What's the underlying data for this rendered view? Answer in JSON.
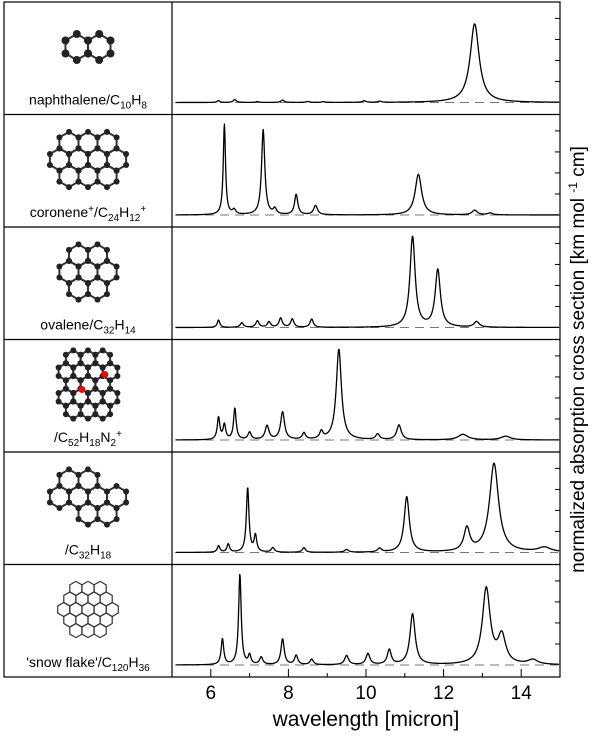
{
  "chart_data": {
    "type": "line",
    "xlabel": "wavelength [micron]",
    "ylabel": "normalized absorption cross section [km mol-1 cm]",
    "xlim": [
      5,
      15
    ],
    "x_ticks": [
      6,
      8,
      10,
      12,
      14
    ],
    "grid": false,
    "legend": "none",
    "panels": [
      {
        "label": {
          "pre": "naphthalene/C",
          "sub1": "10",
          "mid": "H",
          "sub2": "8",
          "sup": ""
        },
        "ylim": [
          0,
          1
        ],
        "peaks": [
          [
            6.2,
            0.02,
            0.04
          ],
          [
            6.62,
            0.03,
            0.05
          ],
          [
            7.2,
            0.01,
            0.04
          ],
          [
            7.85,
            0.025,
            0.05
          ],
          [
            8.5,
            0.01,
            0.05
          ],
          [
            8.9,
            0.008,
            0.05
          ],
          [
            9.95,
            0.018,
            0.05
          ],
          [
            10.35,
            0.012,
            0.05
          ],
          [
            12.8,
            0.85,
            0.14
          ]
        ]
      },
      {
        "label": {
          "pre": "coronene",
          "sup0": "+",
          "mid0": "/C",
          "sub1": "24",
          "mid": "H",
          "sub2": "12",
          "sup": "+"
        },
        "ylim": [
          0,
          1
        ],
        "peaks": [
          [
            6.35,
            0.98,
            0.035
          ],
          [
            6.6,
            0.05,
            0.05
          ],
          [
            7.35,
            0.92,
            0.05
          ],
          [
            7.65,
            0.06,
            0.05
          ],
          [
            8.2,
            0.22,
            0.05
          ],
          [
            8.7,
            0.1,
            0.06
          ],
          [
            11.35,
            0.44,
            0.1
          ],
          [
            12.8,
            0.05,
            0.08
          ],
          [
            13.2,
            0.02,
            0.08
          ]
        ]
      },
      {
        "label": {
          "pre": "ovalene/C",
          "sub1": "32",
          "mid": "H",
          "sub2": "14",
          "sup": ""
        },
        "ylim": [
          0,
          1
        ],
        "peaks": [
          [
            6.2,
            0.08,
            0.04
          ],
          [
            6.8,
            0.05,
            0.05
          ],
          [
            7.2,
            0.07,
            0.05
          ],
          [
            7.5,
            0.06,
            0.05
          ],
          [
            7.8,
            0.1,
            0.05
          ],
          [
            8.1,
            0.09,
            0.05
          ],
          [
            8.6,
            0.09,
            0.05
          ],
          [
            11.2,
            0.98,
            0.08
          ],
          [
            11.85,
            0.62,
            0.08
          ],
          [
            12.85,
            0.06,
            0.08
          ]
        ]
      },
      {
        "label": {
          "pre": "/C",
          "sub1": "52",
          "mid": "H",
          "sub2": "18",
          "mid2": "N",
          "sub3": "2",
          "sup": "+"
        },
        "ylim": [
          0,
          1
        ],
        "peaks": [
          [
            6.2,
            0.24,
            0.04
          ],
          [
            6.35,
            0.16,
            0.04
          ],
          [
            6.62,
            0.34,
            0.04
          ],
          [
            7.0,
            0.08,
            0.05
          ],
          [
            7.45,
            0.15,
            0.06
          ],
          [
            7.85,
            0.3,
            0.06
          ],
          [
            8.4,
            0.07,
            0.05
          ],
          [
            8.85,
            0.08,
            0.05
          ],
          [
            9.3,
            0.98,
            0.08
          ],
          [
            10.3,
            0.06,
            0.06
          ],
          [
            10.85,
            0.16,
            0.07
          ],
          [
            12.5,
            0.06,
            0.15
          ],
          [
            13.6,
            0.04,
            0.15
          ]
        ]
      },
      {
        "label": {
          "pre": "/C",
          "sub1": "32",
          "mid": "H",
          "sub2": "18",
          "sup": ""
        },
        "ylim": [
          0,
          1
        ],
        "peaks": [
          [
            6.2,
            0.07,
            0.04
          ],
          [
            6.45,
            0.09,
            0.04
          ],
          [
            6.95,
            0.7,
            0.04
          ],
          [
            7.15,
            0.18,
            0.04
          ],
          [
            7.6,
            0.05,
            0.05
          ],
          [
            8.4,
            0.05,
            0.05
          ],
          [
            9.5,
            0.03,
            0.06
          ],
          [
            10.35,
            0.04,
            0.06
          ],
          [
            11.05,
            0.6,
            0.08
          ],
          [
            12.6,
            0.25,
            0.09
          ],
          [
            13.3,
            0.96,
            0.14
          ],
          [
            14.6,
            0.05,
            0.2
          ]
        ]
      },
      {
        "label": {
          "pre": "'snow flake'/C",
          "sub1": "120",
          "mid": "H",
          "sub2": "36",
          "sup": ""
        },
        "ylim": [
          0,
          1
        ],
        "peaks": [
          [
            6.3,
            0.28,
            0.04
          ],
          [
            6.75,
            0.98,
            0.04
          ],
          [
            7.0,
            0.1,
            0.04
          ],
          [
            7.3,
            0.08,
            0.05
          ],
          [
            7.85,
            0.28,
            0.05
          ],
          [
            8.2,
            0.1,
            0.05
          ],
          [
            8.6,
            0.06,
            0.05
          ],
          [
            9.5,
            0.1,
            0.06
          ],
          [
            10.05,
            0.12,
            0.06
          ],
          [
            10.6,
            0.16,
            0.06
          ],
          [
            11.2,
            0.55,
            0.08
          ],
          [
            13.1,
            0.82,
            0.12
          ],
          [
            13.5,
            0.3,
            0.12
          ],
          [
            14.3,
            0.05,
            0.15
          ]
        ]
      }
    ]
  }
}
